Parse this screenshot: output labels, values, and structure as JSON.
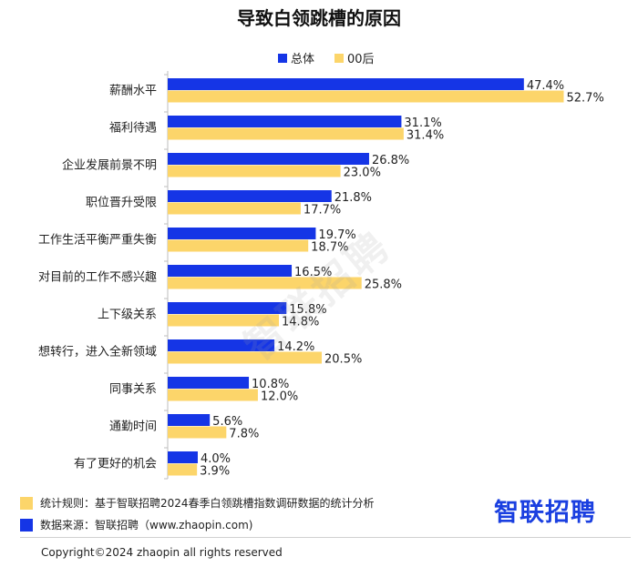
{
  "title": "导致白领跳槽的原因",
  "legend": {
    "total_label": "总体",
    "gen00_label": "00后"
  },
  "colors": {
    "total": "#1535e6",
    "gen00": "#fcd56a"
  },
  "chart_data": {
    "type": "bar",
    "orientation": "horizontal",
    "title": "导致白领跳槽的原因",
    "categories": [
      "薪酬水平",
      "福利待遇",
      "企业发展前景不明",
      "职位晋升受限",
      "工作生活平衡严重失衡",
      "对目前的工作不感兴趣",
      "上下级关系",
      "想转行，进入全新领域",
      "同事关系",
      "通勤时间",
      "有了更好的机会"
    ],
    "series": [
      {
        "name": "总体",
        "values": [
          47.4,
          31.1,
          26.8,
          21.8,
          19.7,
          16.5,
          15.8,
          14.2,
          10.8,
          5.6,
          4.0
        ]
      },
      {
        "name": "00后",
        "values": [
          52.7,
          31.4,
          23.0,
          17.7,
          18.7,
          25.8,
          14.8,
          20.5,
          12.0,
          7.8,
          3.9
        ]
      }
    ],
    "value_format": "percent",
    "legend_position": "top",
    "grid": false
  },
  "footer": {
    "rule_label": "统计规则：基于智联招聘2024春季白领跳槽指数调研数据的统计分析",
    "source_label": "数据来源：智联招聘（www.zhaopin.com)"
  },
  "brand": "智联招聘",
  "watermark": "智联招聘",
  "copyright": "Copyright©2024 zhaopin all rights reserved"
}
